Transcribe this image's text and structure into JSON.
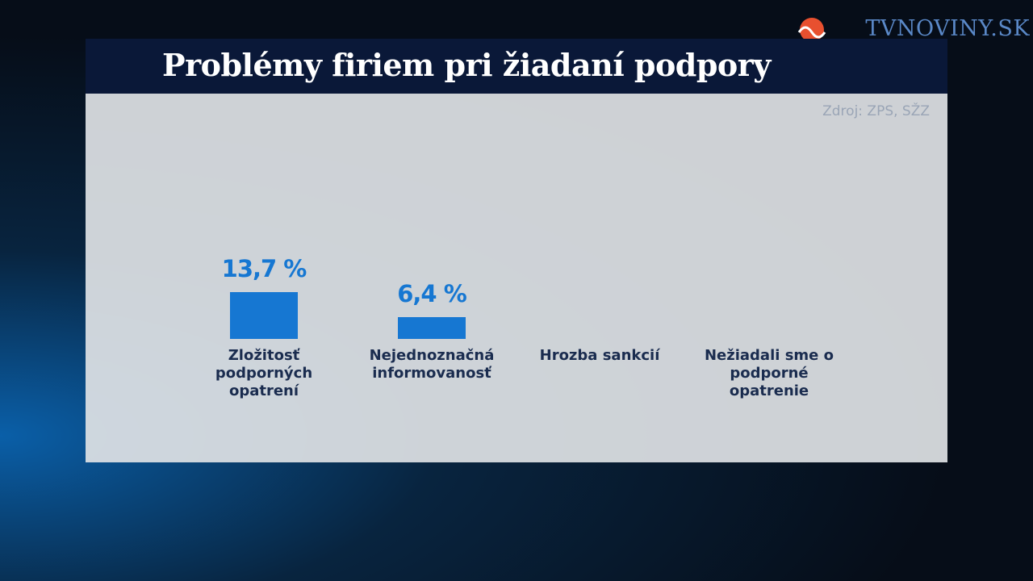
{
  "logo": "TVNOVINY.SK",
  "chart_data": {
    "type": "bar",
    "title": "Problémy firiem pri žiadaní podpory",
    "source": "Zdroj: ZPS, SŽZ",
    "categories": [
      "Zložitosť podporných opatrení",
      "Nejednoznačná informovanosť",
      "Hrozba sankcií",
      "Nežiadali sme o podporné opatrenie"
    ],
    "values": [
      13.7,
      6.4,
      null,
      null
    ],
    "value_labels": [
      "13,7 %",
      "6,4 %",
      null,
      null
    ],
    "color": "#1677d2"
  }
}
